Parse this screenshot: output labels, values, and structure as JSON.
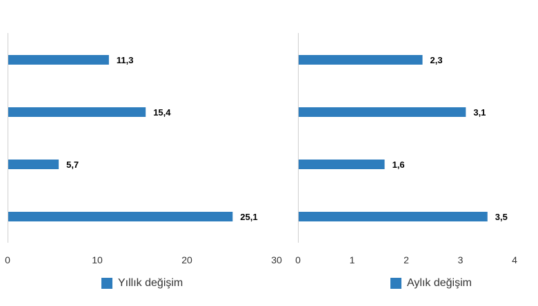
{
  "colors": {
    "bar": "#2e7dbd",
    "axis": "#d0d0d0",
    "label": "#000000",
    "tick": "#333333"
  },
  "chart_data": [
    {
      "type": "bar",
      "orientation": "horizontal",
      "series": [
        {
          "name": "Yıllık değişim",
          "values": [
            11.3,
            15.4,
            5.7,
            25.1
          ],
          "labels": [
            "11,3",
            "15,4",
            "5,7",
            "25,1"
          ]
        }
      ],
      "xlim": [
        0,
        30
      ],
      "xticks": [
        0,
        10,
        20,
        30
      ],
      "xtick_labels": [
        "0",
        "10",
        "20",
        "30"
      ],
      "grid": false,
      "legend": "bottom"
    },
    {
      "type": "bar",
      "orientation": "horizontal",
      "series": [
        {
          "name": "Aylık değişim",
          "values": [
            2.3,
            3.1,
            1.6,
            3.5
          ],
          "labels": [
            "2,3",
            "3,1",
            "1,6",
            "3,5"
          ]
        }
      ],
      "xlim": [
        0,
        4
      ],
      "xticks": [
        0,
        1,
        2,
        3,
        4
      ],
      "xtick_labels": [
        "0",
        "1",
        "2",
        "3",
        "4"
      ],
      "grid": false,
      "legend": "bottom"
    }
  ]
}
